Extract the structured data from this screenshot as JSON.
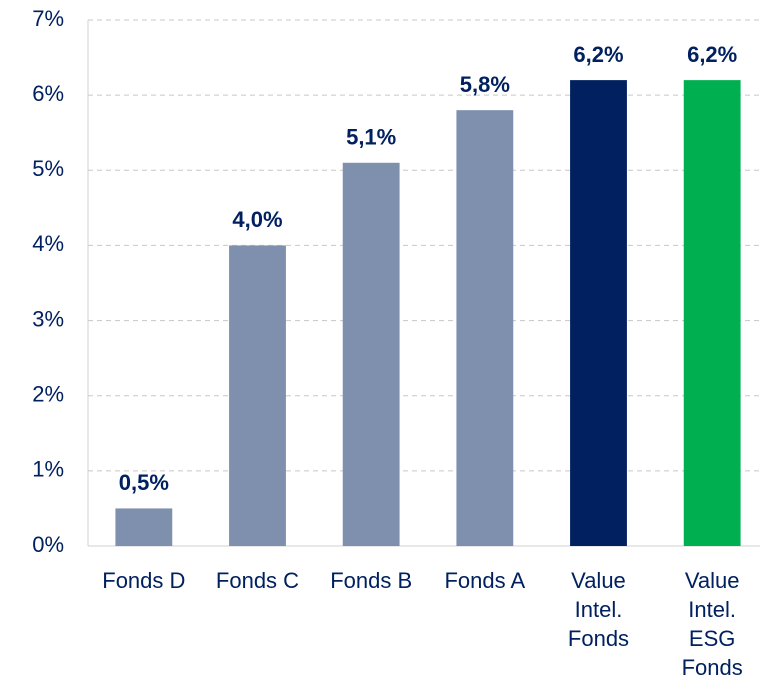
{
  "chart_data": {
    "type": "bar",
    "categories": [
      "Fonds D",
      "Fonds C",
      "Fonds B",
      "Fonds A",
      "Value\nIntel.\nFonds",
      "Value\nIntel.\nESG\nFonds"
    ],
    "values": [
      0.5,
      4.0,
      5.1,
      5.8,
      6.2,
      6.2
    ],
    "value_labels": [
      "0,5%",
      "4,0%",
      "5,1%",
      "5,8%",
      "6,2%",
      "6,2%"
    ],
    "colors": [
      "#7f8fae",
      "#7f8fae",
      "#7f8fae",
      "#7f8fae",
      "#002060",
      "#00b050"
    ],
    "ylim": [
      0,
      7
    ],
    "yticks": [
      {
        "value": 0,
        "label": "0%"
      },
      {
        "value": 1,
        "label": "1%"
      },
      {
        "value": 2,
        "label": "2%"
      },
      {
        "value": 3,
        "label": "3%"
      },
      {
        "value": 4,
        "label": "4%"
      },
      {
        "value": 5,
        "label": "5%"
      },
      {
        "value": 6,
        "label": "6%"
      },
      {
        "value": 7,
        "label": "7%"
      }
    ],
    "grid": true
  }
}
